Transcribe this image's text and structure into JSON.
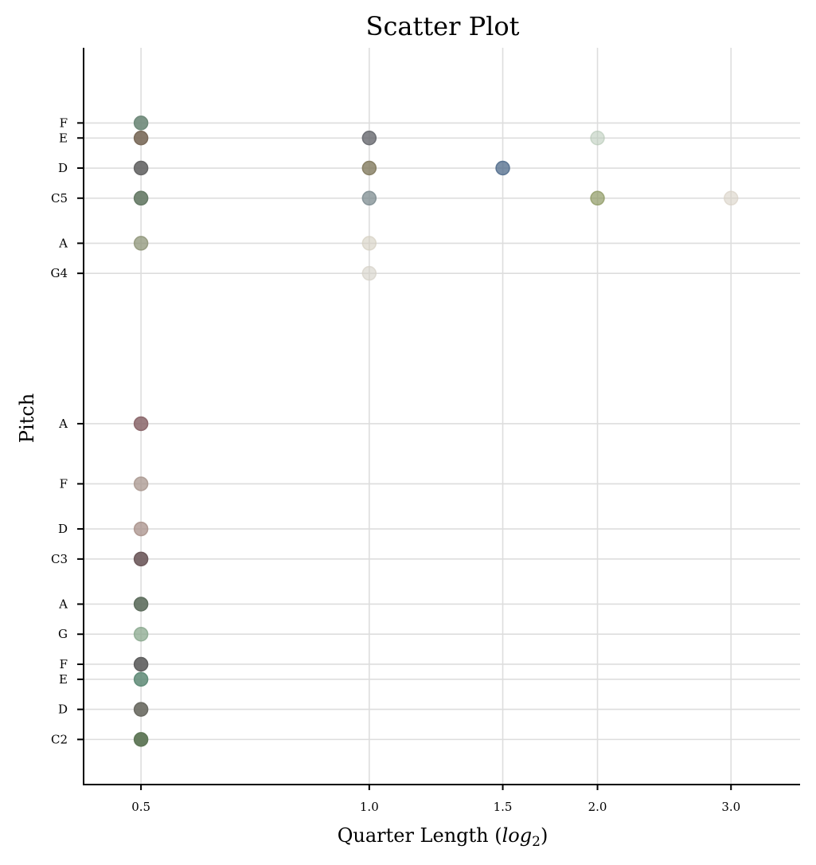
{
  "chart_data": {
    "type": "scatter",
    "title": "Scatter Plot",
    "xlabel": "Quarter Length (log2)",
    "ylabel": "Pitch",
    "x_scale": "log2",
    "xlim": [
      0.42,
      3.7
    ],
    "x_ticks": [
      {
        "value": 0.5,
        "label": "0.5"
      },
      {
        "value": 1.0,
        "label": "1.0"
      },
      {
        "value": 1.5,
        "label": "1.5"
      },
      {
        "value": 2.0,
        "label": "2.0"
      },
      {
        "value": 3.0,
        "label": "3.0"
      }
    ],
    "ylim": [
      33,
      82
    ],
    "y_ticks": [
      {
        "value": 36,
        "label": "C2"
      },
      {
        "value": 38,
        "label": "D"
      },
      {
        "value": 40,
        "label": "E"
      },
      {
        "value": 41,
        "label": "F"
      },
      {
        "value": 43,
        "label": "G"
      },
      {
        "value": 45,
        "label": "A"
      },
      {
        "value": 48,
        "label": "C3"
      },
      {
        "value": 50,
        "label": "D"
      },
      {
        "value": 53,
        "label": "F"
      },
      {
        "value": 57,
        "label": "A"
      },
      {
        "value": 67,
        "label": "G4"
      },
      {
        "value": 69,
        "label": "A"
      },
      {
        "value": 72,
        "label": "C5"
      },
      {
        "value": 74,
        "label": "D"
      },
      {
        "value": 76,
        "label": "E"
      },
      {
        "value": 77,
        "label": "F"
      }
    ],
    "grid": true,
    "points": [
      {
        "x": 0.5,
        "y": 77,
        "color": "#6f8a7a",
        "alpha": 0.9
      },
      {
        "x": 0.5,
        "y": 76,
        "color": "#7a6a5a",
        "alpha": 0.9
      },
      {
        "x": 0.5,
        "y": 74,
        "color": "#666666",
        "alpha": 0.9
      },
      {
        "x": 0.5,
        "y": 72,
        "color": "#667a66",
        "alpha": 0.9
      },
      {
        "x": 0.5,
        "y": 69,
        "color": "#8e9478",
        "alpha": 0.75
      },
      {
        "x": 0.5,
        "y": 57,
        "color": "#8a666a",
        "alpha": 0.85
      },
      {
        "x": 0.5,
        "y": 53,
        "color": "#a8968e",
        "alpha": 0.75
      },
      {
        "x": 0.5,
        "y": 50,
        "color": "#a8908a",
        "alpha": 0.75
      },
      {
        "x": 0.5,
        "y": 48,
        "color": "#6e5a5c",
        "alpha": 0.9
      },
      {
        "x": 0.5,
        "y": 45,
        "color": "#5e6e5e",
        "alpha": 0.9
      },
      {
        "x": 0.5,
        "y": 43,
        "color": "#8aa88e",
        "alpha": 0.75
      },
      {
        "x": 0.5,
        "y": 41,
        "color": "#5e5e5e",
        "alpha": 0.9
      },
      {
        "x": 0.5,
        "y": 40,
        "color": "#5e8a76",
        "alpha": 0.85
      },
      {
        "x": 0.5,
        "y": 38,
        "color": "#6a6a62",
        "alpha": 0.9
      },
      {
        "x": 0.5,
        "y": 36,
        "color": "#5e7656",
        "alpha": 0.95
      },
      {
        "x": 1.0,
        "y": 76,
        "color": "#66686e",
        "alpha": 0.8
      },
      {
        "x": 1.0,
        "y": 74,
        "color": "#827a5e",
        "alpha": 0.8
      },
      {
        "x": 1.0,
        "y": 72,
        "color": "#7e8c90",
        "alpha": 0.75
      },
      {
        "x": 1.0,
        "y": 69,
        "color": "#d4cec0",
        "alpha": 0.6
      },
      {
        "x": 1.0,
        "y": 67,
        "color": "#d4d0c6",
        "alpha": 0.6
      },
      {
        "x": 1.5,
        "y": 74,
        "color": "#4e6a8a",
        "alpha": 0.75
      },
      {
        "x": 2.0,
        "y": 76,
        "color": "#b6c8b6",
        "alpha": 0.55
      },
      {
        "x": 2.0,
        "y": 72,
        "color": "#8e9a64",
        "alpha": 0.7
      },
      {
        "x": 3.0,
        "y": 72,
        "color": "#d8d2c6",
        "alpha": 0.6
      }
    ]
  }
}
